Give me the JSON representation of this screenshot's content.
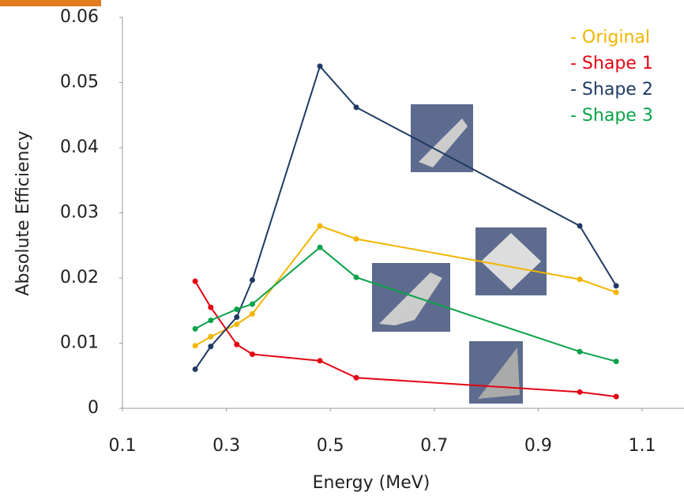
{
  "chart_data": {
    "type": "line",
    "x_label": "Energy (MeV)",
    "y_label": "Absolute Efficiency",
    "x": [
      0.24,
      0.27,
      0.32,
      0.35,
      0.48,
      0.55,
      0.98,
      1.05
    ],
    "series": [
      {
        "name": "- Original",
        "color": "#f2b500",
        "values": [
          0.0096,
          0.011,
          0.0129,
          0.0145,
          0.028,
          0.026,
          0.0198,
          0.0178
        ]
      },
      {
        "name": "- Shape 1",
        "color": "#e30613",
        "values": [
          0.0195,
          0.0155,
          0.0098,
          0.0083,
          0.0073,
          0.0047,
          0.0025,
          0.0018
        ]
      },
      {
        "name": "- Shape 2",
        "color": "#1f3b63",
        "values": [
          0.006,
          0.0095,
          0.014,
          0.0197,
          0.0525,
          0.0462,
          0.028,
          0.0188
        ]
      },
      {
        "name": "- Shape 3",
        "color": "#0aa34a",
        "values": [
          0.0122,
          0.0135,
          0.0152,
          0.016,
          0.0247,
          0.0201,
          0.0087,
          0.0072
        ]
      }
    ],
    "xlim": [
      0.1,
      1.1
    ],
    "xticks": [
      0.1,
      0.3,
      0.5,
      0.7,
      0.9,
      1.1
    ],
    "ylim": [
      0,
      0.06
    ],
    "yticks": [
      0,
      0.01,
      0.02,
      0.03,
      0.04,
      0.05,
      0.06
    ],
    "grid": false
  }
}
